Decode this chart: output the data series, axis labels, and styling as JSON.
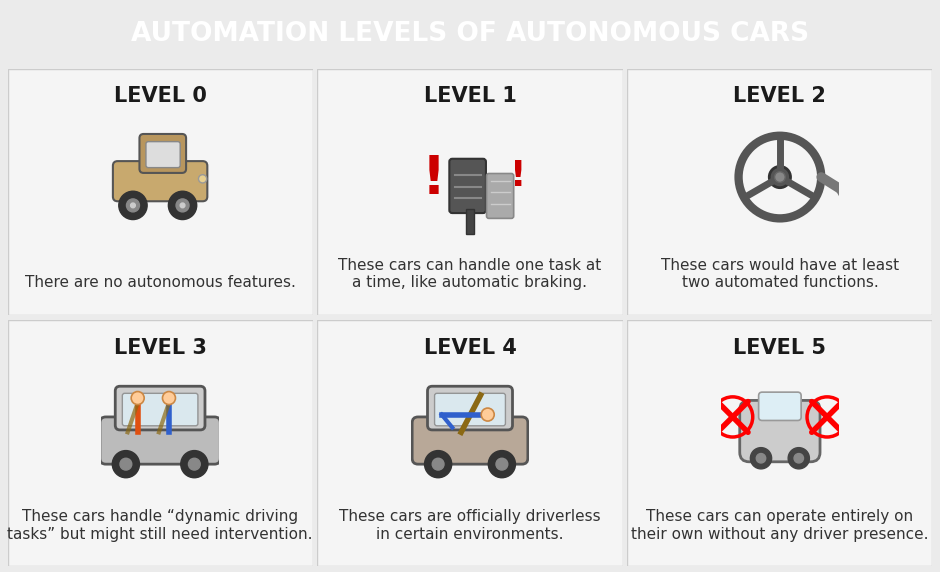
{
  "title": "AUTOMATION LEVELS OF AUTONOMOUS CARS",
  "title_bg_color": "#2d7faa",
  "title_text_color": "#ffffff",
  "grid_bg_color": "#ebebeb",
  "cell_bg_color": "#f5f5f5",
  "divider_color": "#cccccc",
  "levels": [
    {
      "label": "LEVEL 0",
      "description": "There are no autonomous features.",
      "row": 0,
      "col": 0
    },
    {
      "label": "LEVEL 1",
      "description": "These cars can handle one task at\na time, like automatic braking.",
      "row": 0,
      "col": 1
    },
    {
      "label": "LEVEL 2",
      "description": "These cars would have at least\ntwo automated functions.",
      "row": 0,
      "col": 2
    },
    {
      "label": "LEVEL 3",
      "description": "These cars handle “dynamic driving\ntasks” but might still need intervention.",
      "row": 1,
      "col": 0
    },
    {
      "label": "LEVEL 4",
      "description": "These cars are officially driverless\nin certain environments.",
      "row": 1,
      "col": 1
    },
    {
      "label": "LEVEL 5",
      "description": "These cars can operate entirely on\ntheir own without any driver presence.",
      "row": 1,
      "col": 2
    }
  ],
  "level_label_color": "#1a1a1a",
  "description_color": "#333333",
  "level_label_fontsize": 15,
  "description_fontsize": 11
}
